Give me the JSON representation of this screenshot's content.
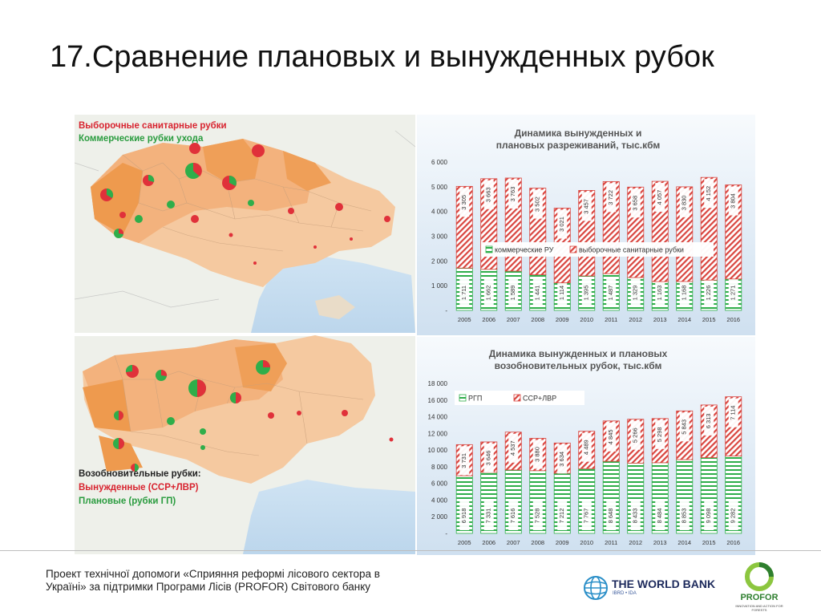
{
  "slide": {
    "title": "17.Сравнение плановых и вынужденных рубок",
    "footer": "Проект технічної допомоги «Сприяння реформі лісового сектора в Україні» за підтримки Програми Лісів (PROFOR) Світового банку",
    "logos": {
      "world_bank_name": "THE WORLD BANK",
      "world_bank_sub": "IBRD • IDA",
      "profor_name": "PROFOR",
      "profor_sub": "INNOVATION AND ACTION FOR FORESTS"
    }
  },
  "maps": {
    "top": {
      "legend_red": "Выборочные санитарные рубки",
      "legend_green": "Коммерческие рубки ухода",
      "colors": {
        "red": "#e0313a",
        "green": "#2fae4a"
      }
    },
    "bottom": {
      "legend_title": "Возобновительные рубки:",
      "legend_red": "Вынужденные (ССР+ЛВР)",
      "legend_green": "Плановые (рубки ГП)",
      "colors": {
        "red": "#e0313a",
        "green": "#2fae4a"
      }
    }
  },
  "chart_data": [
    {
      "type": "bar",
      "stacked": true,
      "title": "Динамика вынужденных и плановых разреживаний, тыс.кбм",
      "categories": [
        "2005",
        "2006",
        "2007",
        "2008",
        "2009",
        "2010",
        "2011",
        "2012",
        "2013",
        "2014",
        "2015",
        "2016"
      ],
      "series": [
        {
          "name": "коммерческие РУ",
          "color": "#2fae4a",
          "values": [
            1711,
            1662,
            1589,
            1441,
            1114,
            1395,
            1487,
            1329,
            1163,
            1168,
            1226,
            1271
          ],
          "labels": [
            "1 711",
            "1 662",
            "1 589",
            "1 441",
            "1 114",
            "1 395",
            "1 487",
            "1 329",
            "1 163",
            "1 168",
            "1 226",
            "1 271"
          ]
        },
        {
          "name": "выборочные санитарные рубки",
          "color": "#d9453f",
          "values": [
            3305,
            3663,
            3763,
            3502,
            3021,
            3457,
            3722,
            3658,
            4057,
            3830,
            4152,
            3804
          ],
          "labels": [
            "3 305",
            "3 663",
            "3 763",
            "3 502",
            "3 021",
            "3 457",
            "3 722",
            "3 658",
            "4 057",
            "3 830",
            "4 152",
            "3 804"
          ]
        }
      ],
      "ylim": [
        0,
        6000
      ],
      "yticks": [
        0,
        1000,
        2000,
        3000,
        4000,
        5000,
        6000
      ],
      "ytick_labels": [
        "-",
        "1 000",
        "2 000",
        "3 000",
        "4 000",
        "5 000",
        "6 000"
      ],
      "legend": "middle"
    },
    {
      "type": "bar",
      "stacked": true,
      "title": "Динамика вынужденных и плановых возобновительных рубок, тыс.кбм",
      "categories": [
        "2005",
        "2006",
        "2007",
        "2008",
        "2009",
        "2010",
        "2011",
        "2012",
        "2013",
        "2014",
        "2015",
        "2016"
      ],
      "series": [
        {
          "name": "РГП",
          "color": "#2fae4a",
          "values": [
            6918,
            7331,
            7616,
            7528,
            7212,
            7767,
            8648,
            8433,
            8484,
            8853,
            9098,
            9282
          ],
          "labels": [
            "6 918",
            "7 331",
            "7 616",
            "7 528",
            "7 212",
            "7 767",
            "8 648",
            "8 433",
            "8 484",
            "8 853",
            "9 098",
            "9 282"
          ]
        },
        {
          "name": "ССР+ЛВР",
          "color": "#d9453f",
          "values": [
            3731,
            3646,
            4537,
            3880,
            3634,
            4489,
            4845,
            5266,
            5298,
            5843,
            6313,
            7114
          ],
          "labels": [
            "3 731",
            "3 646",
            "4 537",
            "3 880",
            "3 634",
            "4 489",
            "4 845",
            "5 266",
            "5 298",
            "5 843",
            "6 313",
            "7 114"
          ]
        }
      ],
      "ylim": [
        0,
        18000
      ],
      "yticks": [
        0,
        2000,
        4000,
        6000,
        8000,
        10000,
        12000,
        14000,
        16000,
        18000
      ],
      "ytick_labels": [
        "-",
        "2 000",
        "4 000",
        "6 000",
        "8 000",
        "10 000",
        "12 000",
        "14 000",
        "16 000",
        "18 000"
      ],
      "legend": "top-left"
    }
  ]
}
